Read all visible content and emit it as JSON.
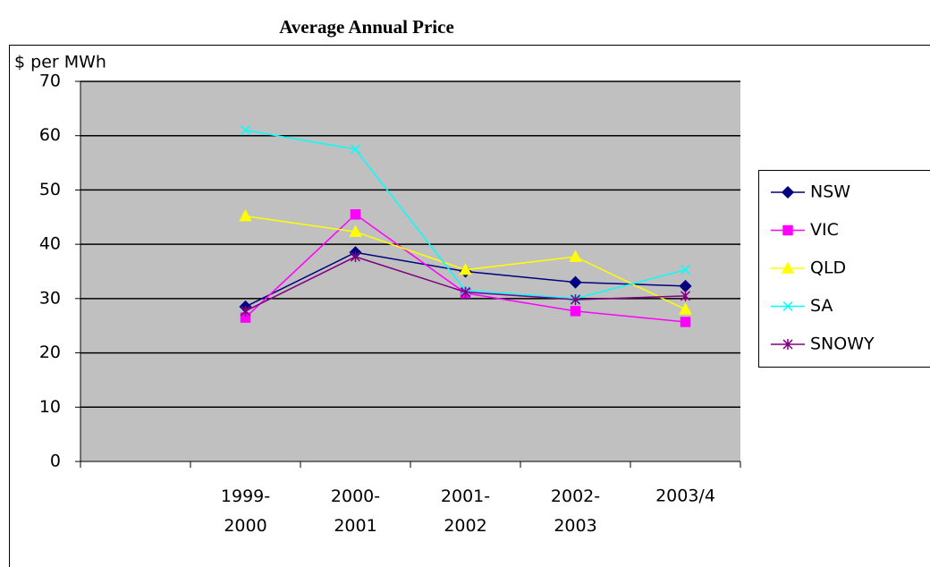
{
  "chart_data": {
    "type": "line",
    "title": "Average Annual Price",
    "y_label": "$ per MWh",
    "categories": [
      null,
      "1999-2000",
      "2000-2001",
      "2001-2002",
      "2002-2003",
      "2003/4"
    ],
    "series": [
      {
        "name": "NSW",
        "color": "#000080",
        "marker": "diamond",
        "values": [
          null,
          28.5,
          38.5,
          35,
          33,
          32.3
        ]
      },
      {
        "name": "VIC",
        "color": "#ff00ff",
        "marker": "square",
        "values": [
          null,
          26.5,
          45.5,
          31,
          27.7,
          25.7
        ]
      },
      {
        "name": "QLD",
        "color": "#ffff00",
        "marker": "triangle",
        "values": [
          null,
          45.2,
          42.3,
          35.3,
          37.7,
          28
        ]
      },
      {
        "name": "SA",
        "color": "#00ffff",
        "marker": "x",
        "values": [
          null,
          61,
          57.5,
          31.5,
          30,
          35.3
        ]
      },
      {
        "name": "SNOWY",
        "color": "#800080",
        "marker": "star",
        "values": [
          null,
          27.7,
          37.7,
          31.2,
          29.8,
          30.5
        ]
      }
    ],
    "ylim": [
      0,
      70
    ],
    "yticks": [
      0,
      10,
      20,
      30,
      40,
      50,
      60,
      70
    ],
    "grid": true,
    "plot_background": "#c0c0c0",
    "legend": "right"
  }
}
